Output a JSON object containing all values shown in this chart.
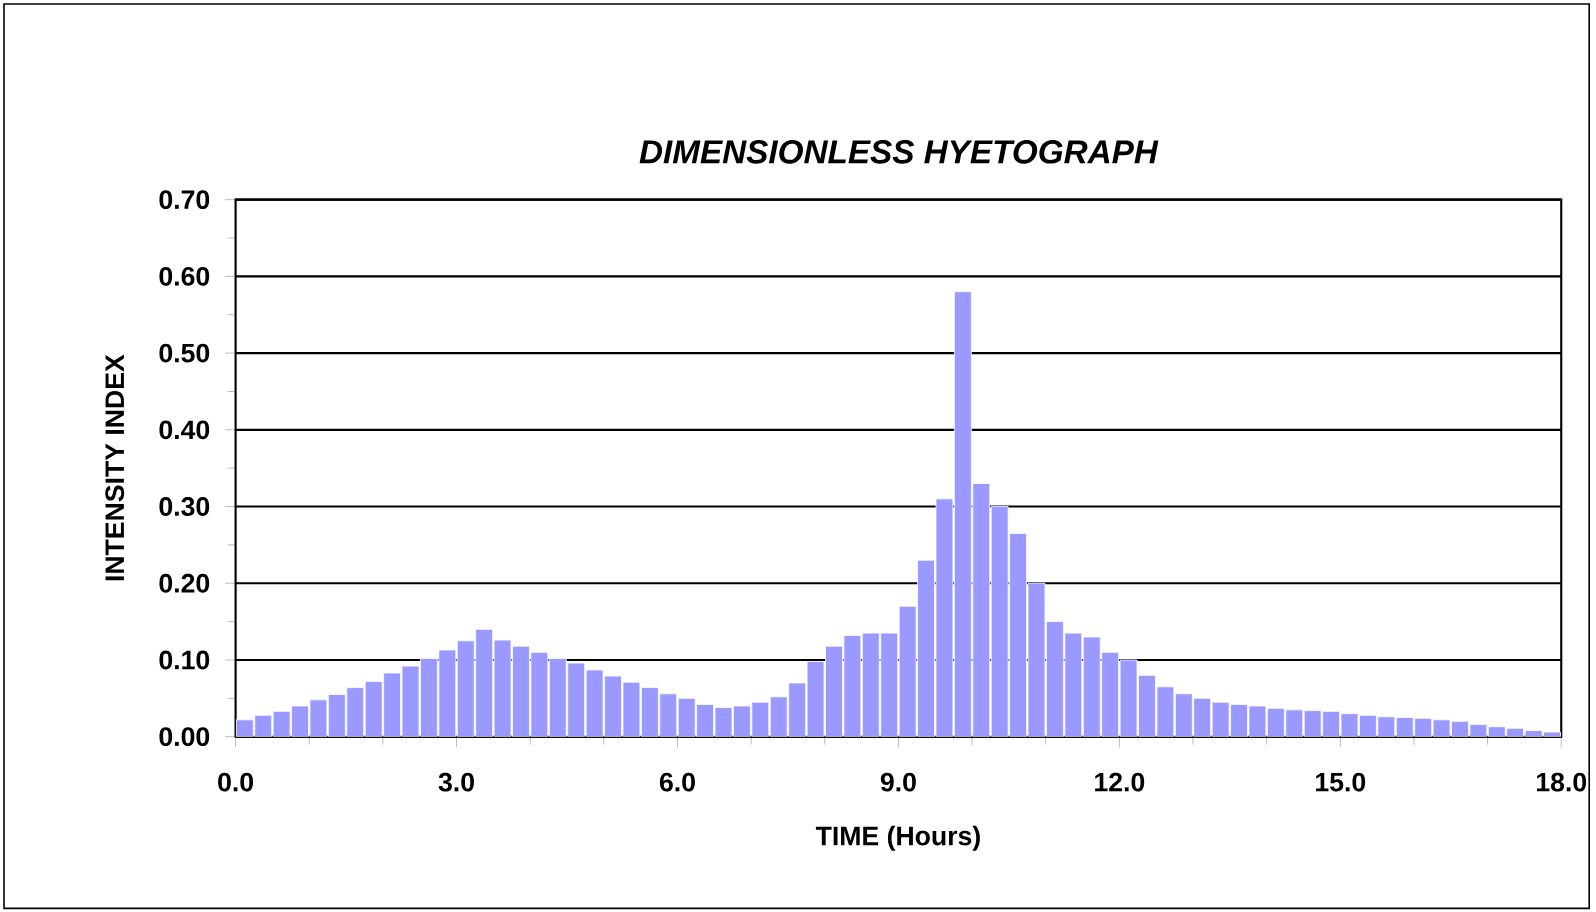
{
  "chart_data": {
    "type": "bar",
    "title": "DIMENSIONLESS HYETOGRAPH",
    "xlabel": "TIME (Hours)",
    "ylabel": "INTENSITY INDEX",
    "x": [
      0.125,
      0.375,
      0.625,
      0.875,
      1.125,
      1.375,
      1.625,
      1.875,
      2.125,
      2.375,
      2.625,
      2.875,
      3.125,
      3.375,
      3.625,
      3.875,
      4.125,
      4.375,
      4.625,
      4.875,
      5.125,
      5.375,
      5.625,
      5.875,
      6.125,
      6.375,
      6.625,
      6.875,
      7.125,
      7.375,
      7.625,
      7.875,
      8.125,
      8.375,
      8.625,
      8.875,
      9.125,
      9.375,
      9.625,
      9.875,
      10.125,
      10.375,
      10.625,
      10.875,
      11.125,
      11.375,
      11.625,
      11.875,
      12.125,
      12.375,
      12.625,
      12.875,
      13.125,
      13.375,
      13.625,
      13.875,
      14.125,
      14.375,
      14.625,
      14.875,
      15.125,
      15.375,
      15.625,
      15.875,
      16.125,
      16.375,
      16.625,
      16.875,
      17.125,
      17.375,
      17.625,
      17.875
    ],
    "values": [
      0.022,
      0.028,
      0.033,
      0.04,
      0.048,
      0.055,
      0.064,
      0.072,
      0.083,
      0.092,
      0.102,
      0.113,
      0.125,
      0.14,
      0.126,
      0.118,
      0.11,
      0.102,
      0.096,
      0.087,
      0.079,
      0.071,
      0.064,
      0.056,
      0.05,
      0.042,
      0.038,
      0.04,
      0.045,
      0.052,
      0.07,
      0.098,
      0.118,
      0.132,
      0.135,
      0.135,
      0.17,
      0.23,
      0.31,
      0.58,
      0.33,
      0.3,
      0.265,
      0.2,
      0.15,
      0.135,
      0.13,
      0.11,
      0.1,
      0.08,
      0.065,
      0.056,
      0.05,
      0.045,
      0.042,
      0.04,
      0.037,
      0.035,
      0.034,
      0.033,
      0.03,
      0.028,
      0.026,
      0.025,
      0.024,
      0.022,
      0.02,
      0.016,
      0.013,
      0.011,
      0.008,
      0.006
    ],
    "color": "#9999ff",
    "xlim": [
      0,
      18
    ],
    "xticks": [
      {
        "value": 0,
        "label": "0.0"
      },
      {
        "value": 1,
        "label": null
      },
      {
        "value": 2,
        "label": null
      },
      {
        "value": 3,
        "label": "3.0"
      },
      {
        "value": 4,
        "label": null
      },
      {
        "value": 5,
        "label": null
      },
      {
        "value": 6,
        "label": "6.0"
      },
      {
        "value": 7,
        "label": null
      },
      {
        "value": 8,
        "label": null
      },
      {
        "value": 9,
        "label": "9.0"
      },
      {
        "value": 10,
        "label": null
      },
      {
        "value": 11,
        "label": null
      },
      {
        "value": 12,
        "label": "12.0"
      },
      {
        "value": 13,
        "label": null
      },
      {
        "value": 14,
        "label": null
      },
      {
        "value": 15,
        "label": "15.0"
      },
      {
        "value": 16,
        "label": null
      },
      {
        "value": 17,
        "label": null
      },
      {
        "value": 18,
        "label": "18.0"
      }
    ],
    "ylim": [
      0,
      0.7
    ],
    "yticks": [
      {
        "value": 0,
        "label": "0.00"
      },
      {
        "value": 0.05,
        "label": null
      },
      {
        "value": 0.1,
        "label": "0.10"
      },
      {
        "value": 0.15,
        "label": null
      },
      {
        "value": 0.2,
        "label": "0.20"
      },
      {
        "value": 0.25,
        "label": null
      },
      {
        "value": 0.3,
        "label": "0.30"
      },
      {
        "value": 0.35,
        "label": null
      },
      {
        "value": 0.4,
        "label": "0.40"
      },
      {
        "value": 0.45,
        "label": null
      },
      {
        "value": 0.5,
        "label": "0.50"
      },
      {
        "value": 0.55,
        "label": null
      },
      {
        "value": 0.6,
        "label": "0.60"
      },
      {
        "value": 0.65,
        "label": null
      },
      {
        "value": 0.7,
        "label": "0.70"
      }
    ],
    "grid": "y"
  }
}
